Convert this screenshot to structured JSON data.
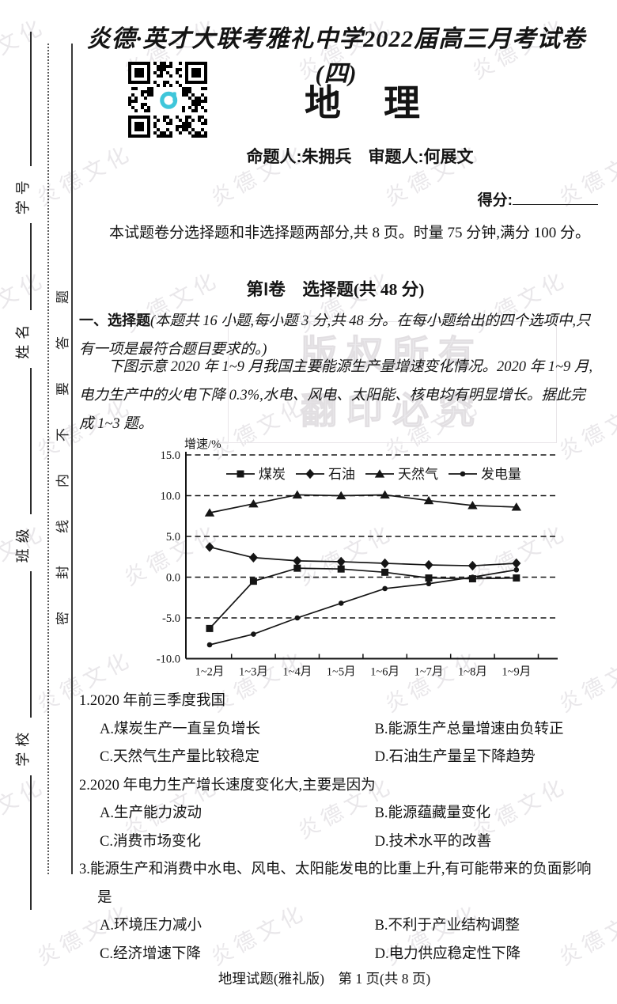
{
  "header": {
    "exam_title": "炎德·英才大联考雅礼中学2022届高三月考试卷(四)",
    "subject": "地　理",
    "setters": "命题人:朱拥兵　审题人:何展文",
    "score_label": "得分:"
  },
  "intro": {
    "text": "本试题卷分选择题和非选择题两部分,共 8 页。时量 75 分钟,满分 100 分。"
  },
  "section": {
    "title": "第Ⅰ卷　选择题(共 48 分)"
  },
  "directions": {
    "lead": "一、选择题",
    "rest": "(本题共 16 小题,每小题 3 分,共 48 分。在每小题给出的四个选项中,只有一项是最符合题目要求的。)"
  },
  "passage": {
    "text": "下图示意 2020 年 1~9 月我国主要能源生产量增速变化情况。2020 年 1~9 月,电力生产中的火电下降 0.3%,水电、风电、太阳能、核电均有明显增长。据此完成 1~3 题。"
  },
  "chart_data": {
    "type": "line",
    "title": "",
    "ylabel": "增速/%",
    "categories": [
      "1~2月",
      "1~3月",
      "1~4月",
      "1~5月",
      "1~6月",
      "1~7月",
      "1~8月",
      "1~9月"
    ],
    "ylim": [
      -10,
      15
    ],
    "yticks": [
      "15.0",
      "10.0",
      "5.0",
      "0.0",
      "-5.0",
      "-10.0"
    ],
    "grid": "horizontal-dashed",
    "legend_position": "top-inside",
    "series": [
      {
        "name": "煤炭",
        "marker": "square",
        "values": [
          -6.3,
          -0.5,
          1.1,
          1.0,
          0.6,
          -0.1,
          -0.2,
          -0.1
        ]
      },
      {
        "name": "石油",
        "marker": "diamond",
        "values": [
          3.7,
          2.4,
          2.0,
          1.9,
          1.7,
          1.5,
          1.4,
          1.7
        ]
      },
      {
        "name": "天然气",
        "marker": "triangle",
        "values": [
          7.9,
          9.0,
          10.1,
          10.0,
          10.1,
          9.4,
          8.8,
          8.6
        ]
      },
      {
        "name": "发电量",
        "marker": "dot",
        "values": [
          -8.3,
          -7.0,
          -5.0,
          -3.2,
          -1.4,
          -0.8,
          0.0,
          0.9
        ]
      }
    ]
  },
  "questions": [
    {
      "number": "1.",
      "stem": "2020 年前三季度我国",
      "options": [
        "A.煤炭生产一直呈负增长",
        "B.能源生产总量增速由负转正",
        "C.天然气生产量比较稳定",
        "D.石油生产量呈下降趋势"
      ]
    },
    {
      "number": "2.",
      "stem": "2020 年电力生产增长速度变化大,主要是因为",
      "options": [
        "A.生产能力波动",
        "B.能源蕴藏量变化",
        "C.消费市场变化",
        "D.技术水平的改善"
      ]
    },
    {
      "number": "3.",
      "stem": "能源生产和消费中水电、风电、太阳能发电的比重上升,有可能带来的负面影响是",
      "options": [
        "A.环境压力减小",
        "B.不利于产业结构调整",
        "C.经济增速下降",
        "D.电力供应稳定性下降"
      ]
    }
  ],
  "footer": {
    "text": "地理试题(雅礼版)　第 1 页(共 8 页)"
  },
  "margin": {
    "labels": [
      "学校",
      "班级",
      "姓名",
      "学号"
    ],
    "seal_text": "密封线内不要答题"
  },
  "watermark": {
    "text": "炎德文化",
    "copyright1": "版权所有",
    "copyright2": "翻印必究"
  }
}
